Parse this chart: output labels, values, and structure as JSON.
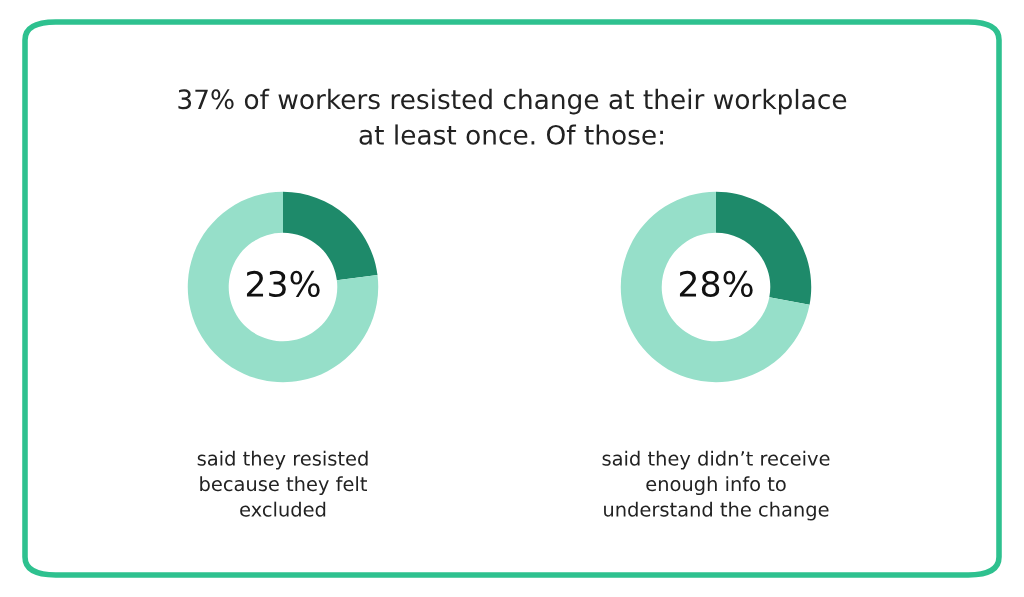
{
  "chart_data": [
    {
      "type": "donut",
      "title": "37% of workers resisted change at their workplace\nat least once. Of those:",
      "categories": [
        null,
        null
      ],
      "values": [
        23,
        77
      ],
      "colors": [
        "#1e8a6a",
        "#96dfc9"
      ],
      "value_labels": [
        "23%",
        null
      ],
      "annotations": [
        "said they resisted\nbecause they felt\nexcluded"
      ]
    },
    {
      "type": "donut",
      "categories": [
        null,
        null
      ],
      "values": [
        28,
        72
      ],
      "colors": [
        "#1e8a6a",
        "#96dfc9"
      ],
      "value_labels": [
        "28%",
        null
      ],
      "annotations": [
        "said they didn’t receive\nenough info to\nunderstand the change"
      ]
    }
  ]
}
